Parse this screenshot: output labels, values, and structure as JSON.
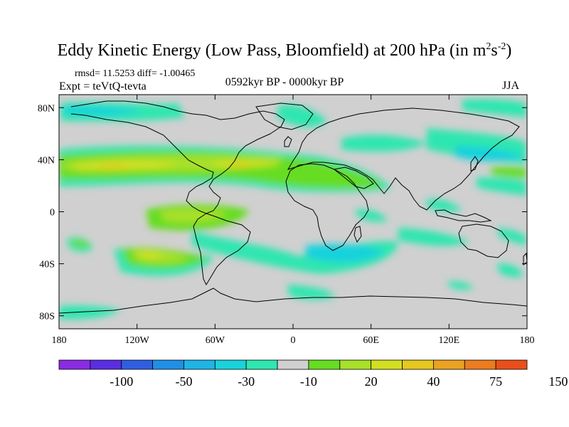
{
  "title": {
    "main": "Eddy Kinetic Energy (Low Pass, Bloomfield) at 200 hPa (in m",
    "sup1": "2",
    "mid": "s",
    "sup2": "-2",
    "end": ")"
  },
  "stats": "rmsd= 11.5253 diff= -1.00465",
  "expt": "Expt = teVtQ-tevta",
  "period": "0592kyr BP - 0000kyr BP",
  "season": "JJA",
  "axes": {
    "lat_ticks": [
      "80N",
      "40N",
      "0",
      "40S",
      "80S"
    ],
    "lat_values": [
      80,
      40,
      0,
      -40,
      -80
    ],
    "lon_ticks": [
      "180",
      "120W",
      "60W",
      "0",
      "60E",
      "120E",
      "180"
    ],
    "lon_values": [
      -180,
      -120,
      -60,
      0,
      60,
      120,
      180
    ],
    "lat_range": [
      -90,
      90
    ],
    "lon_range": [
      -180,
      180
    ]
  },
  "colorbar": {
    "colors": [
      "#8a2be2",
      "#5a2ee0",
      "#2f5fe0",
      "#1f8fe6",
      "#1fb4e6",
      "#19d2dc",
      "#2ee6b0",
      "#d0d0d0",
      "#66dd22",
      "#a8e02a",
      "#d2e020",
      "#e6c81e",
      "#eaa220",
      "#ec7c1e",
      "#ea4f1a"
    ],
    "labels": [
      "-100",
      "-50",
      "-30",
      "-10",
      "20",
      "40",
      "75",
      "150"
    ]
  },
  "map_colors": {
    "background": "#d0d0d0",
    "coast": "#000000"
  }
}
